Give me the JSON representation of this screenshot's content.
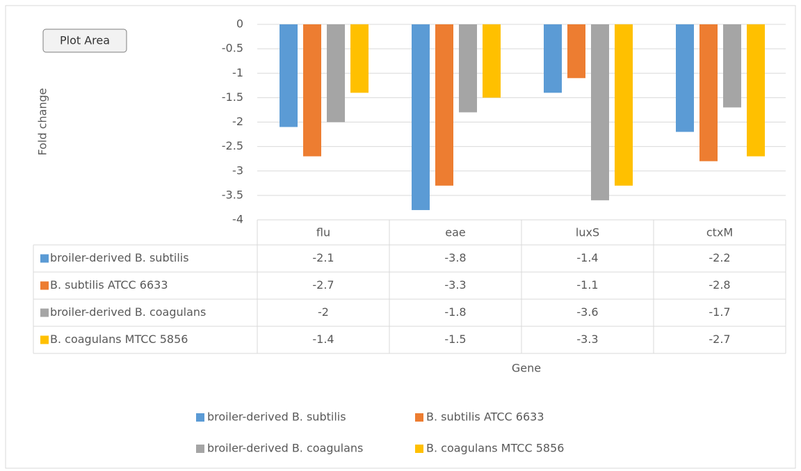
{
  "chart_data": {
    "type": "bar",
    "tooltip": "Plot Area",
    "y_label": "Fold change",
    "x_label": "Gene",
    "categories": [
      "flu",
      "eae",
      "luxS",
      "ctxM"
    ],
    "series": [
      {
        "name": "broiler-derived B. subtilis",
        "color": "#5b9bd5",
        "values": [
          -2.1,
          -3.8,
          -1.4,
          -2.2
        ]
      },
      {
        "name": "B. subtilis ATCC 6633",
        "color": "#ed7d31",
        "values": [
          -2.7,
          -3.3,
          -1.1,
          -2.8
        ]
      },
      {
        "name": "broiler-derived  B. coagulans",
        "color": "#a5a5a5",
        "values": [
          -2,
          -1.8,
          -3.6,
          -1.7
        ]
      },
      {
        "name": "B. coagulans MTCC 5856",
        "color": "#ffc000",
        "values": [
          -1.4,
          -1.5,
          -3.3,
          -2.7
        ]
      }
    ],
    "ylim": [
      -4,
      0
    ],
    "yticks": [
      0,
      -0.5,
      -1,
      -1.5,
      -2,
      -2.5,
      -3,
      -3.5,
      -4
    ],
    "grid": true,
    "data_table": true,
    "legend": "bottom"
  }
}
